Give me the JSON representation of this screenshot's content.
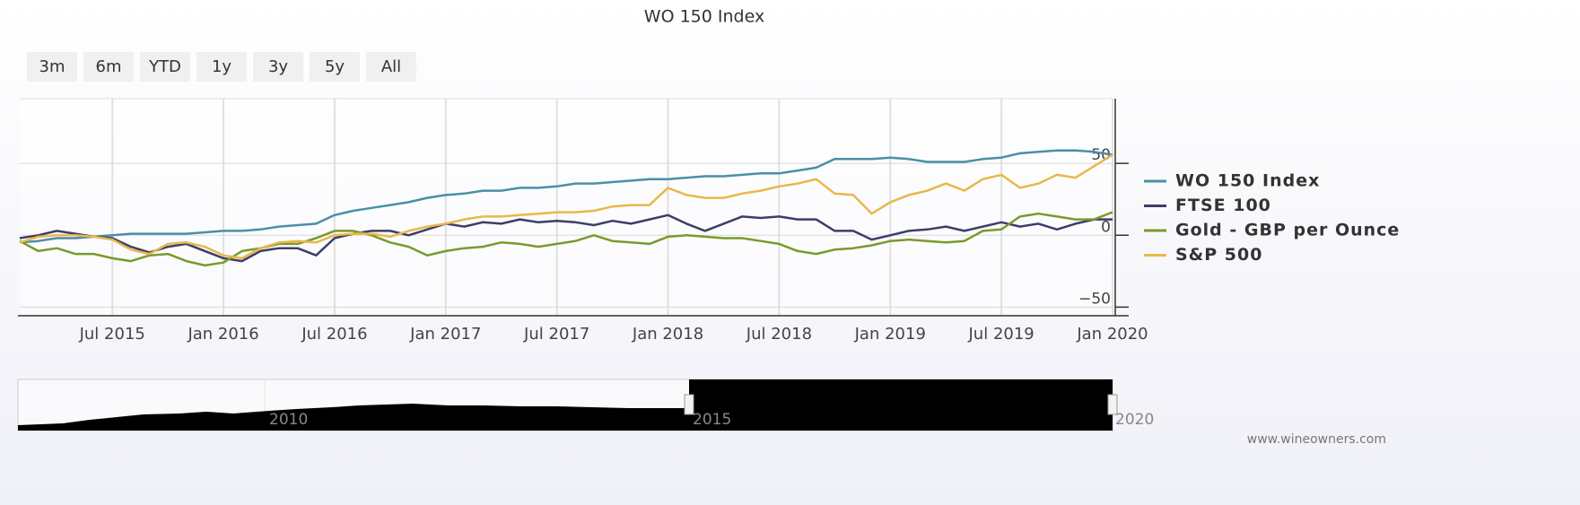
{
  "chart_data": {
    "type": "line",
    "title": "WO 150 Index",
    "buttons": [
      "3m",
      "6m",
      "YTD",
      "1y",
      "3y",
      "5y",
      "All"
    ],
    "x": [
      "2015-02",
      "2015-03",
      "2015-04",
      "2015-05",
      "2015-06",
      "2015-07",
      "2015-08",
      "2015-09",
      "2015-10",
      "2015-11",
      "2015-12",
      "2016-01",
      "2016-02",
      "2016-03",
      "2016-04",
      "2016-05",
      "2016-06",
      "2016-07",
      "2016-08",
      "2016-09",
      "2016-10",
      "2016-11",
      "2016-12",
      "2017-01",
      "2017-02",
      "2017-03",
      "2017-04",
      "2017-05",
      "2017-06",
      "2017-07",
      "2017-08",
      "2017-09",
      "2017-10",
      "2017-11",
      "2017-12",
      "2018-01",
      "2018-02",
      "2018-03",
      "2018-04",
      "2018-05",
      "2018-06",
      "2018-07",
      "2018-08",
      "2018-09",
      "2018-10",
      "2018-11",
      "2018-12",
      "2019-01",
      "2019-02",
      "2019-03",
      "2019-04",
      "2019-05",
      "2019-06",
      "2019-07",
      "2019-08",
      "2019-09",
      "2019-10",
      "2019-11",
      "2019-12",
      "2020-01"
    ],
    "series": [
      {
        "name": "WO 150 Index",
        "color": "#4a8fa6",
        "values": [
          -5,
          -4,
          -2,
          -2,
          -1,
          0,
          1,
          1,
          1,
          1,
          2,
          3,
          3,
          4,
          6,
          7,
          8,
          14,
          17,
          19,
          21,
          23,
          26,
          28,
          29,
          31,
          31,
          33,
          33,
          34,
          36,
          36,
          37,
          38,
          39,
          39,
          40,
          41,
          41,
          42,
          43,
          43,
          45,
          47,
          53,
          53,
          53,
          54,
          53,
          51,
          51,
          51,
          53,
          54,
          57,
          58,
          59,
          59,
          58,
          56
        ]
      },
      {
        "name": "FTSE 100",
        "color": "#3d3d6b",
        "values": [
          -2,
          0,
          3,
          1,
          -1,
          -2,
          -8,
          -12,
          -8,
          -6,
          -11,
          -16,
          -18,
          -11,
          -9,
          -9,
          -14,
          -2,
          1,
          3,
          3,
          0,
          4,
          8,
          6,
          9,
          8,
          11,
          9,
          10,
          9,
          7,
          10,
          8,
          11,
          14,
          8,
          3,
          8,
          13,
          12,
          13,
          11,
          11,
          3,
          3,
          -3,
          0,
          3,
          4,
          6,
          3,
          6,
          9,
          6,
          8,
          4,
          8,
          11,
          11
        ]
      },
      {
        "name": "Gold - GBP per Ounce",
        "color": "#7a9a2a",
        "values": [
          -4,
          -11,
          -9,
          -13,
          -13,
          -16,
          -18,
          -14,
          -13,
          -18,
          -21,
          -19,
          -11,
          -9,
          -6,
          -6,
          -2,
          3,
          3,
          0,
          -5,
          -8,
          -14,
          -11,
          -9,
          -8,
          -5,
          -6,
          -8,
          -6,
          -4,
          0,
          -4,
          -5,
          -6,
          -1,
          0,
          -1,
          -2,
          -2,
          -4,
          -6,
          -11,
          -13,
          -10,
          -9,
          -7,
          -4,
          -3,
          -4,
          -5,
          -4,
          3,
          4,
          13,
          15,
          13,
          11,
          11,
          16
        ]
      },
      {
        "name": "S&P 500",
        "color": "#e8b84a",
        "values": [
          -5,
          -1,
          0,
          0,
          -1,
          -3,
          -10,
          -13,
          -6,
          -5,
          -8,
          -14,
          -16,
          -9,
          -5,
          -4,
          -5,
          0,
          1,
          1,
          -1,
          3,
          6,
          8,
          11,
          13,
          13,
          14,
          15,
          16,
          16,
          17,
          20,
          21,
          21,
          33,
          28,
          26,
          26,
          29,
          31,
          34,
          36,
          39,
          29,
          28,
          15,
          23,
          28,
          31,
          36,
          31,
          39,
          42,
          33,
          36,
          42,
          40,
          48,
          56
        ]
      }
    ],
    "xlim": [
      "2015-02",
      "2020-01"
    ],
    "xticks": [
      {
        "value": "2015-07",
        "label": "Jul 2015"
      },
      {
        "value": "2016-01",
        "label": "Jan 2016"
      },
      {
        "value": "2016-07",
        "label": "Jul 2016"
      },
      {
        "value": "2017-01",
        "label": "Jan 2017"
      },
      {
        "value": "2017-07",
        "label": "Jul 2017"
      },
      {
        "value": "2018-01",
        "label": "Jan 2018"
      },
      {
        "value": "2018-07",
        "label": "Jul 2018"
      },
      {
        "value": "2019-01",
        "label": "Jan 2019"
      },
      {
        "value": "2019-07",
        "label": "Jul 2019"
      },
      {
        "value": "2020-01",
        "label": "Jan 2020"
      }
    ],
    "ylim": [
      -56,
      95
    ],
    "yticks": [
      {
        "value": -50,
        "label": "−50"
      },
      0,
      50
    ],
    "grid": true,
    "legend": "right",
    "navigator": {
      "labels": [
        "2010",
        "2015",
        "2020"
      ]
    },
    "credit": "www.wineowners.com"
  }
}
